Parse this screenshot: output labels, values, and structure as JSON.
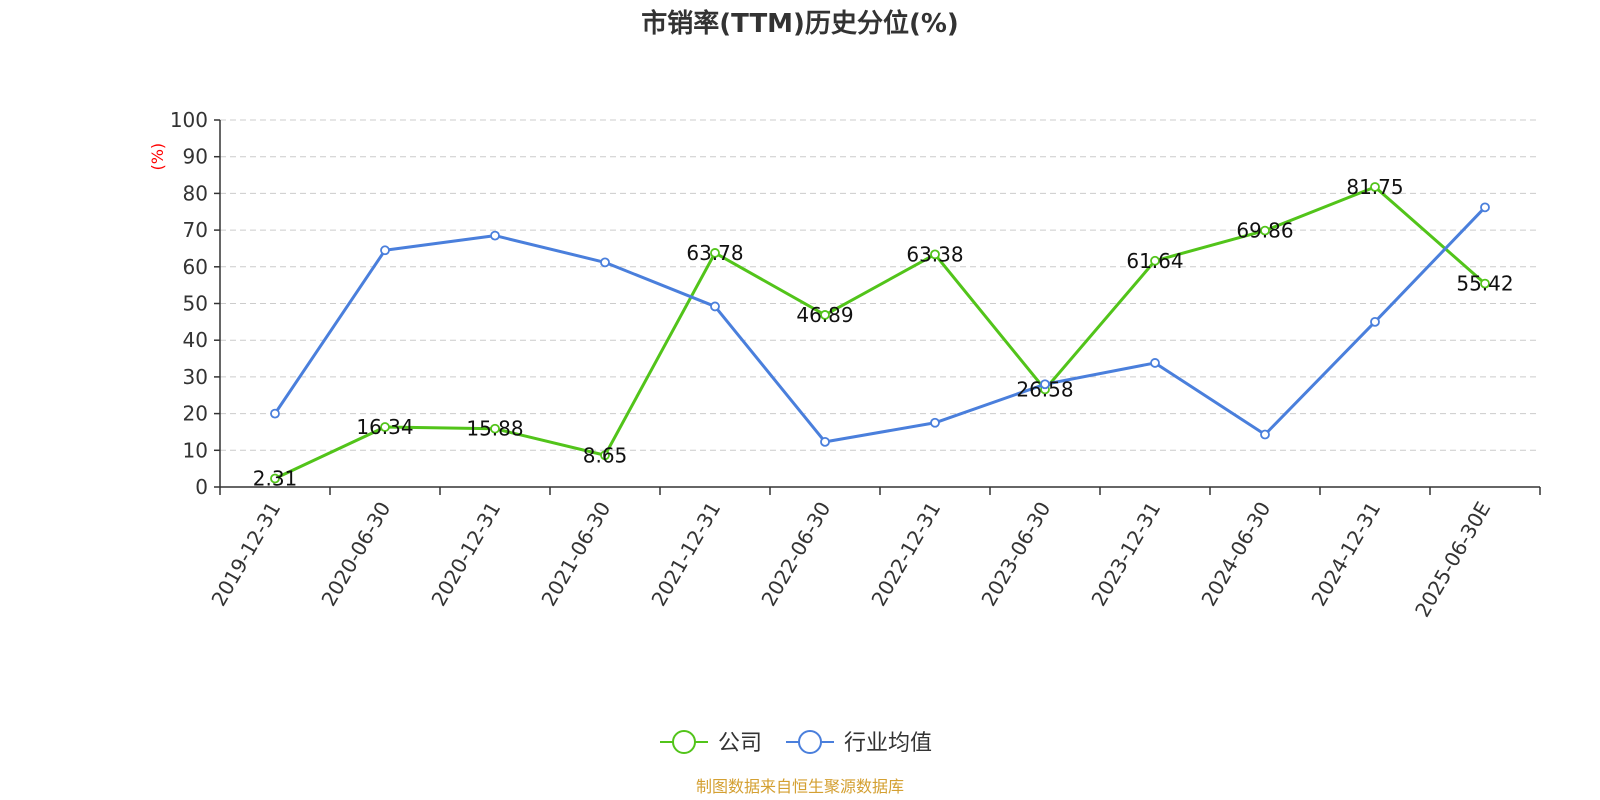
{
  "chart_data": {
    "type": "line",
    "title": "市销率(TTM)历史分位(%)",
    "ylabel": "(%)",
    "ylim": [
      0,
      100
    ],
    "yticks": [
      0,
      10,
      20,
      30,
      40,
      50,
      60,
      70,
      80,
      90,
      100
    ],
    "grid": true,
    "legend_position": "bottom",
    "categories": [
      "2019-12-31",
      "2020-06-30",
      "2020-12-31",
      "2021-06-30",
      "2021-12-31",
      "2022-06-30",
      "2022-12-31",
      "2023-06-30",
      "2023-12-31",
      "2024-06-30",
      "2024-12-31",
      "2025-06-30E"
    ],
    "series": [
      {
        "name": "公司",
        "color": "#52c41a",
        "show_labels": true,
        "values": [
          2.31,
          16.34,
          15.88,
          8.65,
          63.78,
          46.89,
          63.38,
          26.58,
          61.64,
          69.86,
          81.75,
          55.42
        ],
        "labels": [
          "2.31",
          "16.34",
          "15.88",
          "8.65",
          "63.78",
          "46.89",
          "63.38",
          "26.58",
          "61.64",
          "69.86",
          "81.75",
          "55.42"
        ]
      },
      {
        "name": "行业均值",
        "color": "#4a7fdc",
        "show_labels": false,
        "values": [
          20.0,
          64.5,
          68.5,
          61.2,
          49.2,
          12.3,
          17.5,
          28.0,
          33.8,
          14.3,
          45.0,
          76.2
        ]
      }
    ]
  },
  "source": "制图数据来自恒生聚源数据库",
  "colors": {
    "ylabel": "#ff0000",
    "source": "#d4a032",
    "grid": "#cccccc",
    "axis": "#333333"
  }
}
